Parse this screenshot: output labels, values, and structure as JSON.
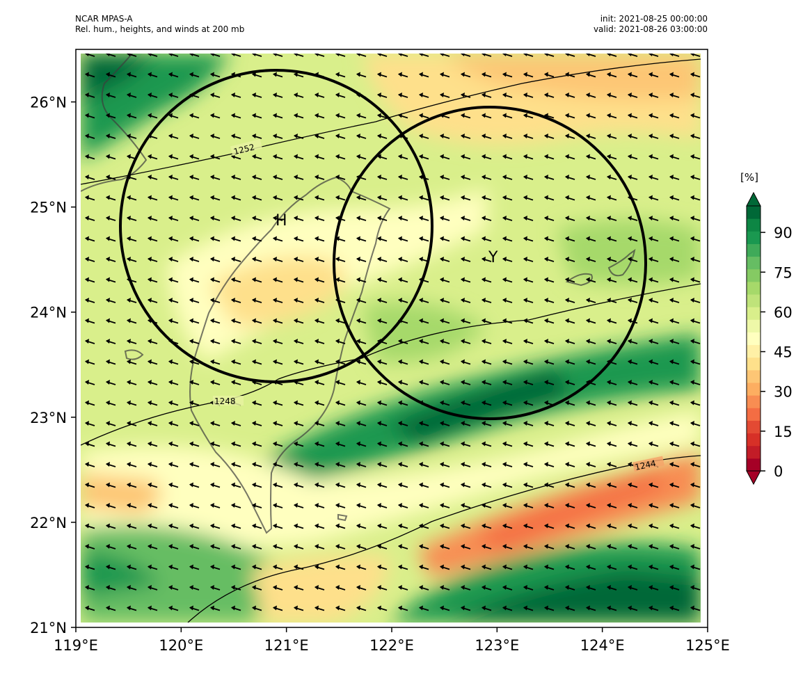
{
  "header": {
    "source": "NCAR MPAS-A",
    "description": "Rel. hum., heights, and winds at 200 mb",
    "init": "init: 2021-08-25 00:00:00",
    "valid": "valid: 2021-08-26 03:00:00"
  },
  "map": {
    "lon_range": [
      119,
      125
    ],
    "lat_range": [
      21,
      26.5
    ],
    "x_ticks": [
      "119°E",
      "120°E",
      "121°E",
      "122°E",
      "123°E",
      "124°E",
      "125°E"
    ],
    "y_ticks": [
      "21°N",
      "22°N",
      "23°N",
      "24°N",
      "25°N",
      "26°N"
    ],
    "wind_direction": "northeasterly"
  },
  "contours": [
    {
      "label": "1252"
    },
    {
      "label": "1248"
    },
    {
      "label": "1244"
    }
  ],
  "markers": [
    {
      "label": "H",
      "lon": 120.9,
      "lat": 24.85,
      "radius_deg": 1.35
    },
    {
      "label": "Y",
      "lon": 122.97,
      "lat": 24.48,
      "radius_deg": 1.35
    }
  ],
  "colorbar": {
    "unit": "[%]",
    "ticks": [
      "0",
      "15",
      "30",
      "45",
      "60",
      "75",
      "90"
    ],
    "range": [
      0,
      100
    ],
    "colors": [
      "#a50026",
      "#c21c27",
      "#d73027",
      "#e34a33",
      "#f46d43",
      "#f88d52",
      "#fdae61",
      "#fdc675",
      "#fee08b",
      "#fff0a6",
      "#ffffbf",
      "#eef8a8",
      "#d9ef8b",
      "#bfe37a",
      "#a6d96a",
      "#85ca63",
      "#66bd63",
      "#3faa59",
      "#1a9850",
      "#0d8644",
      "#006837"
    ],
    "extend": "both"
  }
}
